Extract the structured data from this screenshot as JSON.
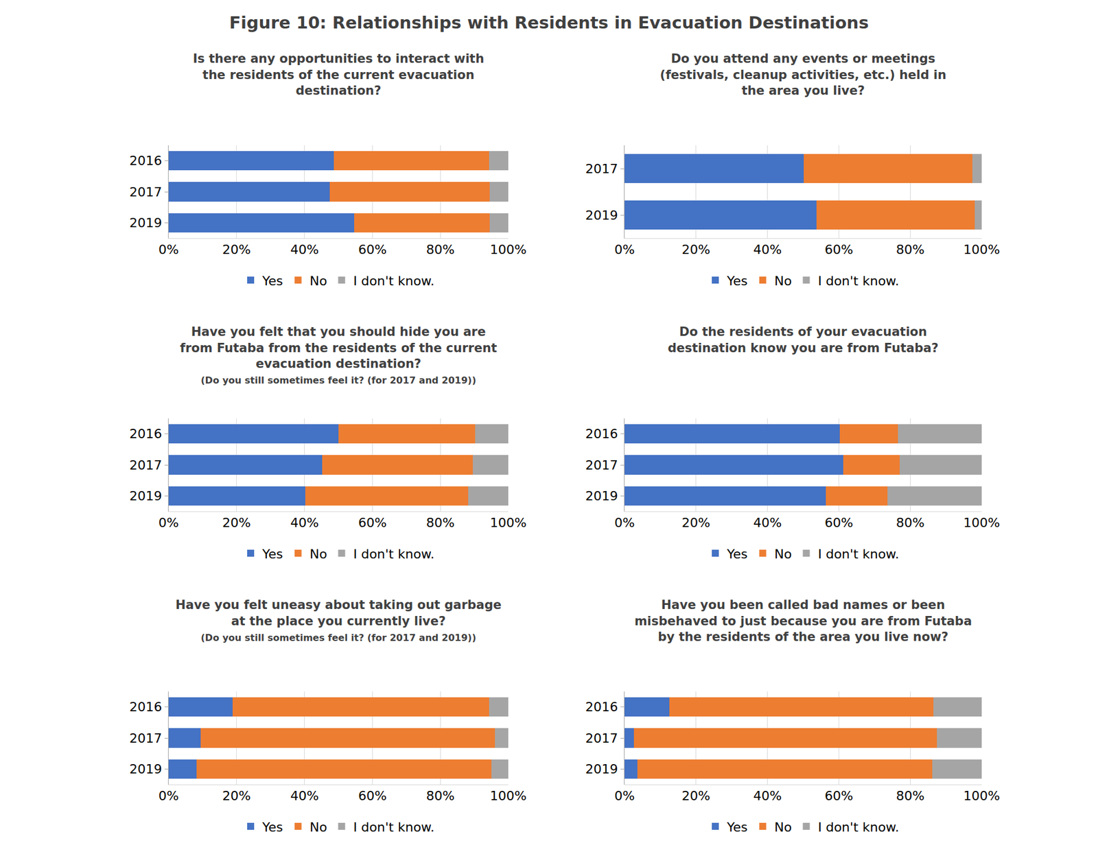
{
  "title": "Figure 10: Relationships with Residents in Evacuation Destinations",
  "chart_data": [
    {
      "type": "bar",
      "orientation": "horizontal",
      "stacked": true,
      "grid": true,
      "legend": "bottom",
      "title": "Is there any opportunities to interact with the residents of the current evacuation destination?",
      "categories": [
        "2016",
        "2017",
        "2019"
      ],
      "series": [
        {
          "name": "Yes",
          "color": "#4472c4",
          "values": [
            48.7,
            47.4,
            54.7
          ]
        },
        {
          "name": "No",
          "color": "#ed7d31",
          "values": [
            45.6,
            47.1,
            39.8
          ]
        },
        {
          "name": "I don't know.",
          "color": "#a5a5a5",
          "values": [
            5.7,
            5.5,
            5.5
          ]
        }
      ],
      "xlim": [
        0,
        100
      ],
      "xticks": [
        {
          "value": 0,
          "label": "0%"
        },
        {
          "value": 20,
          "label": "20%"
        },
        {
          "value": 40,
          "label": "40%"
        },
        {
          "value": 60,
          "label": "60%"
        },
        {
          "value": 80,
          "label": "80%"
        },
        {
          "value": 100,
          "label": "100%"
        }
      ]
    },
    {
      "type": "bar",
      "orientation": "horizontal",
      "stacked": true,
      "grid": true,
      "legend": "bottom",
      "title": "Do you attend any events or meetings (festivals, cleanup activities, etc.) held in the area you live?",
      "categories": [
        "2017",
        "2019"
      ],
      "series": [
        {
          "name": "Yes",
          "color": "#4472c4",
          "values": [
            50.2,
            53.8
          ]
        },
        {
          "name": "No",
          "color": "#ed7d31",
          "values": [
            47.2,
            44.2
          ]
        },
        {
          "name": "I don't know.",
          "color": "#a5a5a5",
          "values": [
            2.6,
            2.0
          ]
        }
      ],
      "xlim": [
        0,
        100
      ],
      "xticks": [
        {
          "value": 0,
          "label": "0%"
        },
        {
          "value": 20,
          "label": "20%"
        },
        {
          "value": 40,
          "label": "40%"
        },
        {
          "value": 60,
          "label": "60%"
        },
        {
          "value": 80,
          "label": "80%"
        },
        {
          "value": 100,
          "label": "100%"
        }
      ]
    },
    {
      "type": "bar",
      "orientation": "horizontal",
      "stacked": true,
      "grid": true,
      "legend": "bottom",
      "title": "Have you felt that you should hide you are from Futaba from the residents of the current evacuation destination?",
      "subtitle": "(Do you still sometimes feel it? (for 2017 and 2019))",
      "categories": [
        "2016",
        "2017",
        "2019"
      ],
      "series": [
        {
          "name": "Yes",
          "color": "#4472c4",
          "values": [
            50.0,
            45.2,
            40.2
          ]
        },
        {
          "name": "No",
          "color": "#ed7d31",
          "values": [
            40.2,
            44.4,
            48.0
          ]
        },
        {
          "name": "I don't know.",
          "color": "#a5a5a5",
          "values": [
            9.8,
            10.4,
            11.8
          ]
        }
      ],
      "xlim": [
        0,
        100
      ],
      "xticks": [
        {
          "value": 0,
          "label": "0%"
        },
        {
          "value": 20,
          "label": "20%"
        },
        {
          "value": 40,
          "label": "40%"
        },
        {
          "value": 60,
          "label": "60%"
        },
        {
          "value": 80,
          "label": "80%"
        },
        {
          "value": 100,
          "label": "100%"
        }
      ]
    },
    {
      "type": "bar",
      "orientation": "horizontal",
      "stacked": true,
      "grid": true,
      "legend": "bottom",
      "title": "Do the residents of your evacuation destination know you are from Futaba?",
      "categories": [
        "2016",
        "2017",
        "2019"
      ],
      "series": [
        {
          "name": "Yes",
          "color": "#4472c4",
          "values": [
            60.2,
            61.2,
            56.3
          ]
        },
        {
          "name": "No",
          "color": "#ed7d31",
          "values": [
            16.3,
            15.9,
            17.3
          ]
        },
        {
          "name": "I don't know.",
          "color": "#a5a5a5",
          "values": [
            23.5,
            22.9,
            26.4
          ]
        }
      ],
      "xlim": [
        0,
        100
      ],
      "xticks": [
        {
          "value": 0,
          "label": "0%"
        },
        {
          "value": 20,
          "label": "20%"
        },
        {
          "value": 40,
          "label": "40%"
        },
        {
          "value": 60,
          "label": "60%"
        },
        {
          "value": 80,
          "label": "80%"
        },
        {
          "value": 100,
          "label": "100%"
        }
      ]
    },
    {
      "type": "bar",
      "orientation": "horizontal",
      "stacked": true,
      "grid": true,
      "legend": "bottom",
      "title": "Have you felt uneasy about taking out garbage at the place you currently live?",
      "subtitle": "(Do you still sometimes feel it? (for 2017 and 2019))",
      "categories": [
        "2016",
        "2017",
        "2019"
      ],
      "series": [
        {
          "name": "Yes",
          "color": "#4472c4",
          "values": [
            18.8,
            9.5,
            8.2
          ]
        },
        {
          "name": "No",
          "color": "#ed7d31",
          "values": [
            75.5,
            86.5,
            86.9
          ]
        },
        {
          "name": "I don't know.",
          "color": "#a5a5a5",
          "values": [
            5.7,
            4.0,
            4.9
          ]
        }
      ],
      "xlim": [
        0,
        100
      ],
      "xticks": [
        {
          "value": 0,
          "label": "0%"
        },
        {
          "value": 20,
          "label": "20%"
        },
        {
          "value": 40,
          "label": "40%"
        },
        {
          "value": 60,
          "label": "60%"
        },
        {
          "value": 80,
          "label": "80%"
        },
        {
          "value": 100,
          "label": "100%"
        }
      ]
    },
    {
      "type": "bar",
      "orientation": "horizontal",
      "stacked": true,
      "grid": true,
      "legend": "bottom",
      "title": "Have you been called bad names or been misbehaved to just because you are from Futaba by the residents of the area you live now?",
      "categories": [
        "2016",
        "2017",
        "2019"
      ],
      "series": [
        {
          "name": "Yes",
          "color": "#4472c4",
          "values": [
            12.5,
            2.6,
            3.6
          ]
        },
        {
          "name": "No",
          "color": "#ed7d31",
          "values": [
            74.0,
            84.9,
            82.6
          ]
        },
        {
          "name": "I don't know.",
          "color": "#a5a5a5",
          "values": [
            13.5,
            12.5,
            13.8
          ]
        }
      ],
      "xlim": [
        0,
        100
      ],
      "xticks": [
        {
          "value": 0,
          "label": "0%"
        },
        {
          "value": 20,
          "label": "20%"
        },
        {
          "value": 40,
          "label": "40%"
        },
        {
          "value": 60,
          "label": "60%"
        },
        {
          "value": 80,
          "label": "80%"
        },
        {
          "value": 100,
          "label": "100%"
        }
      ]
    }
  ]
}
